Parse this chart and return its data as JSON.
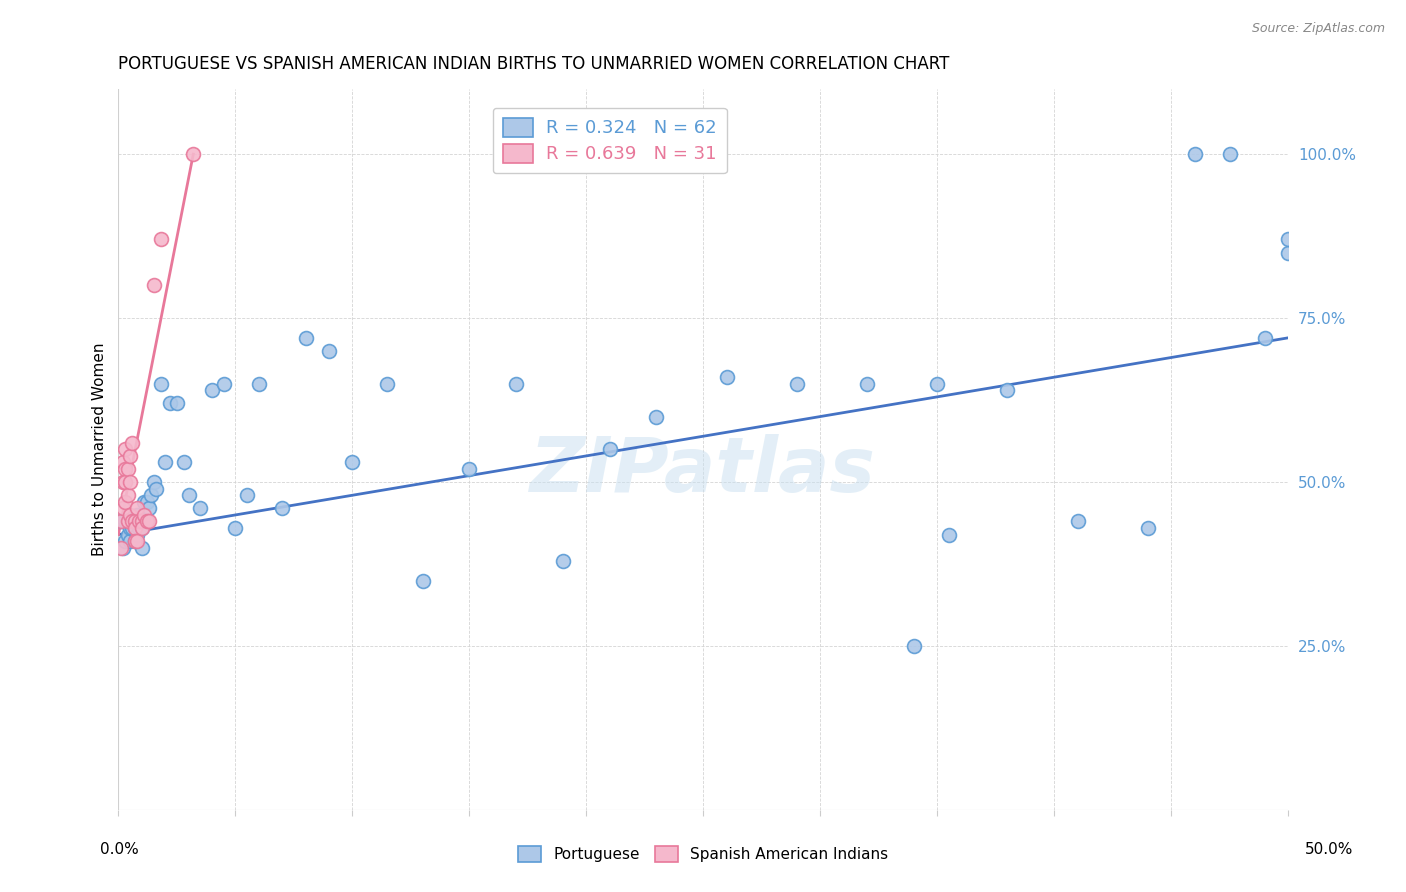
{
  "title": "PORTUGUESE VS SPANISH AMERICAN INDIAN BIRTHS TO UNMARRIED WOMEN CORRELATION CHART",
  "source": "Source: ZipAtlas.com",
  "ylabel": "Births to Unmarried Women",
  "legend_blue_text": "R = 0.324   N = 62",
  "legend_pink_text": "R = 0.639   N = 31",
  "legend_label1": "Portuguese",
  "legend_label2": "Spanish American Indians",
  "blue_face_color": "#adc8e8",
  "blue_edge_color": "#5b9bd5",
  "pink_face_color": "#f5b8cc",
  "pink_edge_color": "#e8789a",
  "blue_line_color": "#4472c4",
  "pink_line_color": "#e8789a",
  "watermark_color": "#c8dff0",
  "blue_x": [
    0.001,
    0.002,
    0.002,
    0.003,
    0.003,
    0.004,
    0.004,
    0.005,
    0.005,
    0.006,
    0.006,
    0.007,
    0.007,
    0.008,
    0.008,
    0.009,
    0.009,
    0.01,
    0.01,
    0.011,
    0.012,
    0.013,
    0.014,
    0.015,
    0.016,
    0.018,
    0.02,
    0.022,
    0.025,
    0.028,
    0.03,
    0.035,
    0.04,
    0.045,
    0.05,
    0.055,
    0.06,
    0.07,
    0.08,
    0.09,
    0.1,
    0.115,
    0.13,
    0.15,
    0.17,
    0.19,
    0.21,
    0.23,
    0.26,
    0.29,
    0.32,
    0.35,
    0.38,
    0.41,
    0.44,
    0.46,
    0.475,
    0.49,
    0.5,
    0.5,
    0.34,
    0.355
  ],
  "blue_y": [
    0.44,
    0.4,
    0.44,
    0.41,
    0.44,
    0.42,
    0.44,
    0.41,
    0.43,
    0.43,
    0.44,
    0.41,
    0.43,
    0.42,
    0.45,
    0.43,
    0.44,
    0.4,
    0.43,
    0.47,
    0.47,
    0.46,
    0.48,
    0.5,
    0.49,
    0.65,
    0.53,
    0.62,
    0.62,
    0.53,
    0.48,
    0.46,
    0.64,
    0.65,
    0.43,
    0.48,
    0.65,
    0.46,
    0.72,
    0.7,
    0.53,
    0.65,
    0.35,
    0.52,
    0.65,
    0.38,
    0.55,
    0.6,
    0.66,
    0.65,
    0.65,
    0.65,
    0.64,
    0.44,
    0.43,
    1.0,
    1.0,
    0.72,
    0.85,
    0.87,
    0.25,
    0.42
  ],
  "pink_x": [
    0.001,
    0.001,
    0.002,
    0.002,
    0.002,
    0.003,
    0.003,
    0.003,
    0.003,
    0.004,
    0.004,
    0.004,
    0.005,
    0.005,
    0.005,
    0.006,
    0.006,
    0.007,
    0.007,
    0.007,
    0.008,
    0.008,
    0.009,
    0.01,
    0.01,
    0.011,
    0.012,
    0.013,
    0.015,
    0.018,
    0.032
  ],
  "pink_y": [
    0.44,
    0.4,
    0.53,
    0.5,
    0.46,
    0.55,
    0.52,
    0.5,
    0.47,
    0.52,
    0.48,
    0.44,
    0.54,
    0.5,
    0.45,
    0.56,
    0.44,
    0.44,
    0.43,
    0.41,
    0.46,
    0.41,
    0.44,
    0.44,
    0.43,
    0.45,
    0.44,
    0.44,
    0.8,
    0.87,
    1.0
  ],
  "blue_line_x": [
    0.0,
    0.5
  ],
  "blue_line_y": [
    0.42,
    0.72
  ],
  "pink_line_x": [
    0.0,
    0.032
  ],
  "pink_line_y": [
    0.42,
    1.0
  ],
  "xlim": [
    0.0,
    0.5
  ],
  "ylim": [
    0.0,
    1.1
  ],
  "xticks": [
    0.0,
    0.05,
    0.1,
    0.15,
    0.2,
    0.25,
    0.3,
    0.35,
    0.4,
    0.45,
    0.5
  ],
  "yticks": [
    0.25,
    0.5,
    0.75,
    1.0
  ]
}
